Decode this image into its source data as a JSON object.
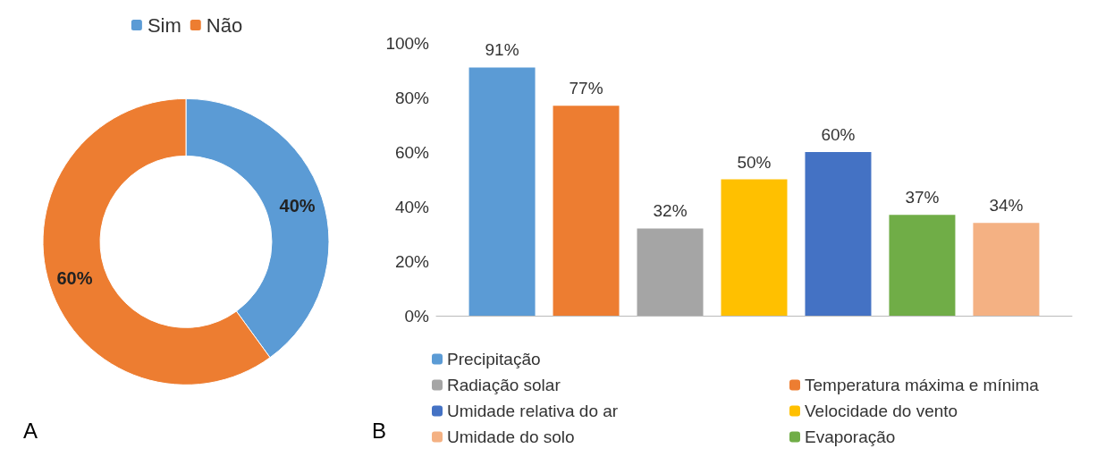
{
  "chart_data": [
    {
      "type": "donut",
      "categories": [
        "Sim",
        "Não"
      ],
      "values": [
        40,
        60
      ],
      "colors": [
        "#5b9bd5",
        "#ed7d31"
      ],
      "value_labels": [
        "40%",
        "60%"
      ],
      "legend": "top",
      "annotations": [
        "A"
      ]
    },
    {
      "type": "bar",
      "categories": [
        null
      ],
      "ylim": [
        0,
        100
      ],
      "yticks": [
        {
          "value": 0,
          "label": "0%"
        },
        {
          "value": 20,
          "label": "20%"
        },
        {
          "value": 40,
          "label": "40%"
        },
        {
          "value": 60,
          "label": "60%"
        },
        {
          "value": 80,
          "label": "80%"
        },
        {
          "value": 100,
          "label": "100%"
        }
      ],
      "grid": false,
      "legend": "bottom",
      "annotations": [
        "B"
      ],
      "series": [
        {
          "name": "Precipitação",
          "color": "#5b9bd5",
          "values": [
            91
          ],
          "value_labels": [
            "91%"
          ]
        },
        {
          "name": "Temperatura máxima e mínima",
          "color": "#ed7d31",
          "values": [
            77
          ],
          "value_labels": [
            "77%"
          ]
        },
        {
          "name": "Radiação solar",
          "color": "#a5a5a5",
          "values": [
            32
          ],
          "value_labels": [
            "32%"
          ]
        },
        {
          "name": "Velocidade do vento",
          "color": "#ffc000",
          "values": [
            50
          ],
          "value_labels": [
            "50%"
          ]
        },
        {
          "name": "Umidade relativa do ar",
          "color": "#4472c4",
          "values": [
            60
          ],
          "value_labels": [
            "60%"
          ]
        },
        {
          "name": "Evaporação",
          "color": "#70ad47",
          "values": [
            37
          ],
          "value_labels": [
            "37%"
          ]
        },
        {
          "name": "Umidade do solo",
          "color": "#f4b183",
          "values": [
            34
          ],
          "value_labels": [
            "34%"
          ]
        }
      ]
    }
  ]
}
